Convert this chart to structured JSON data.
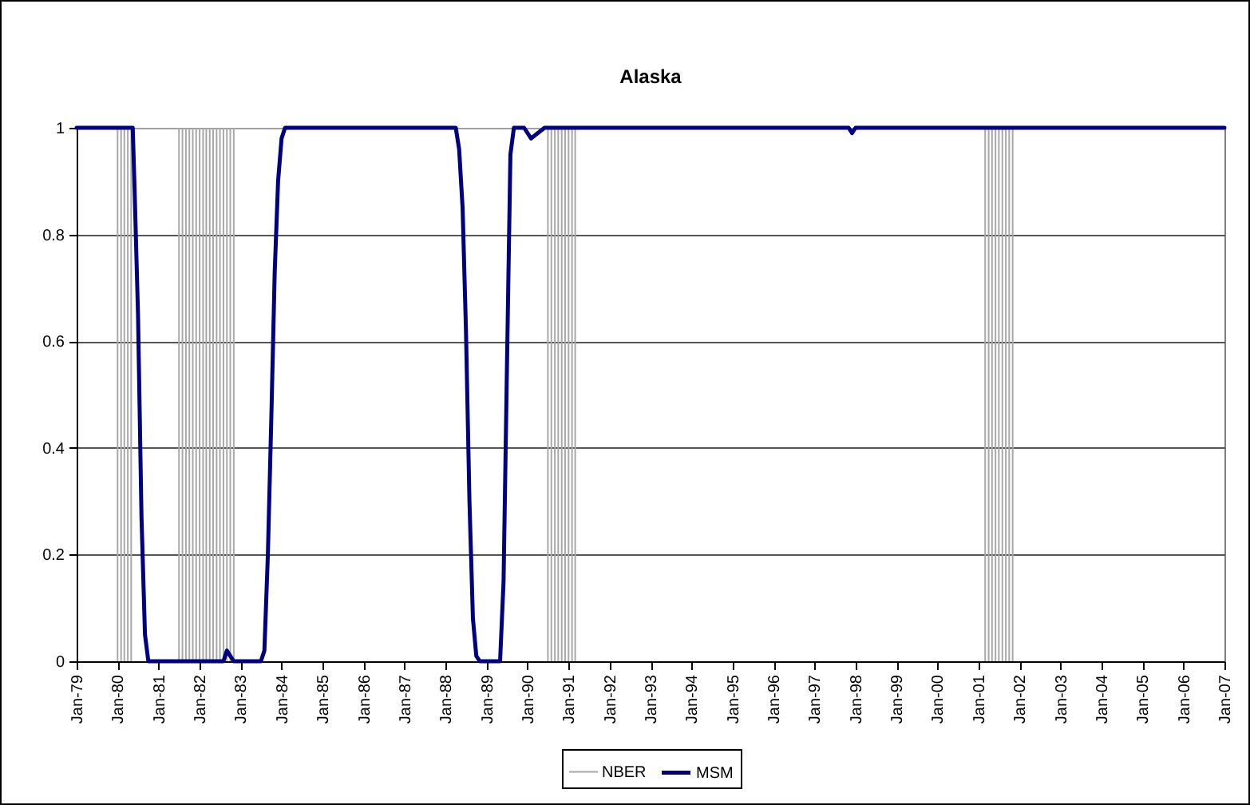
{
  "chart_data": {
    "type": "line",
    "title": "Alaska",
    "xlim": [
      "1979-01",
      "2007-01"
    ],
    "xticks": [
      {
        "value": "1979-01",
        "label": "Jan-79"
      },
      {
        "value": "1980-01",
        "label": "Jan-80"
      },
      {
        "value": "1981-01",
        "label": "Jan-81"
      },
      {
        "value": "1982-01",
        "label": "Jan-82"
      },
      {
        "value": "1983-01",
        "label": "Jan-83"
      },
      {
        "value": "1984-01",
        "label": "Jan-84"
      },
      {
        "value": "1985-01",
        "label": "Jan-85"
      },
      {
        "value": "1986-01",
        "label": "Jan-86"
      },
      {
        "value": "1987-01",
        "label": "Jan-87"
      },
      {
        "value": "1988-01",
        "label": "Jan-88"
      },
      {
        "value": "1989-01",
        "label": "Jan-89"
      },
      {
        "value": "1990-01",
        "label": "Jan-90"
      },
      {
        "value": "1991-01",
        "label": "Jan-91"
      },
      {
        "value": "1992-01",
        "label": "Jan-92"
      },
      {
        "value": "1993-01",
        "label": "Jan-93"
      },
      {
        "value": "1994-01",
        "label": "Jan-94"
      },
      {
        "value": "1995-01",
        "label": "Jan-95"
      },
      {
        "value": "1996-01",
        "label": "Jan-96"
      },
      {
        "value": "1997-01",
        "label": "Jan-97"
      },
      {
        "value": "1998-01",
        "label": "Jan-98"
      },
      {
        "value": "1999-01",
        "label": "Jan-99"
      },
      {
        "value": "2000-01",
        "label": "Jan-00"
      },
      {
        "value": "2001-01",
        "label": "Jan-01"
      },
      {
        "value": "2002-01",
        "label": "Jan-02"
      },
      {
        "value": "2003-01",
        "label": "Jan-03"
      },
      {
        "value": "2004-01",
        "label": "Jan-04"
      },
      {
        "value": "2005-01",
        "label": "Jan-05"
      },
      {
        "value": "2006-01",
        "label": "Jan-06"
      },
      {
        "value": "2007-01",
        "label": "Jan-07"
      }
    ],
    "ylim": [
      0,
      1
    ],
    "yticks": [
      0,
      0.2,
      0.4,
      0.6,
      0.8,
      1
    ],
    "grid": "y",
    "legend": "bottom",
    "series": [
      {
        "name": "NBER",
        "type": "bar",
        "color": "#a8a8a8",
        "x": [
          "1980-01",
          "1980-02",
          "1980-03",
          "1980-04",
          "1980-05",
          "1981-07",
          "1981-08",
          "1981-09",
          "1981-10",
          "1981-11",
          "1981-12",
          "1982-01",
          "1982-02",
          "1982-03",
          "1982-04",
          "1982-05",
          "1982-06",
          "1982-07",
          "1982-08",
          "1982-09",
          "1982-10",
          "1982-11",
          "1990-07",
          "1990-08",
          "1990-09",
          "1990-10",
          "1990-11",
          "1990-12",
          "1991-01",
          "1991-02",
          "1991-03",
          "2001-03",
          "2001-04",
          "2001-05",
          "2001-06",
          "2001-07",
          "2001-08",
          "2001-09",
          "2001-10",
          "2001-11"
        ],
        "values": [
          1,
          1,
          1,
          1,
          1,
          1,
          1,
          1,
          1,
          1,
          1,
          1,
          1,
          1,
          1,
          1,
          1,
          1,
          1,
          1,
          1,
          1,
          1,
          1,
          1,
          1,
          1,
          1,
          1,
          1,
          1,
          1,
          1,
          1,
          1,
          1,
          1,
          1,
          1,
          1
        ]
      },
      {
        "name": "MSM",
        "color": "#000080",
        "x": [
          "1979-01",
          "1980-05-15",
          "1980-06",
          "1980-07",
          "1980-08",
          "1980-09",
          "1980-10",
          "1982-08",
          "1982-09",
          "1982-10",
          "1982-11",
          "1983-07",
          "1983-08",
          "1983-09",
          "1983-10",
          "1983-11",
          "1983-12",
          "1984-01",
          "1984-02",
          "1988-04",
          "1988-05",
          "1988-06",
          "1988-07",
          "1988-08",
          "1988-09",
          "1988-10",
          "1988-11",
          "1989-05",
          "1989-06",
          "1989-07",
          "1989-08",
          "1989-09",
          "1989-12",
          "1990-02",
          "1990-04",
          "1990-06",
          "1997-11",
          "1997-12",
          "1998-01",
          "2007-01"
        ],
        "values": [
          1,
          1,
          0.88,
          0.65,
          0.27,
          0.05,
          0,
          0,
          0.02,
          0.01,
          0,
          0,
          0.02,
          0.2,
          0.45,
          0.73,
          0.9,
          0.98,
          1,
          1,
          0.96,
          0.85,
          0.62,
          0.3,
          0.08,
          0.01,
          0,
          0,
          0.15,
          0.55,
          0.95,
          1,
          1,
          0.98,
          0.99,
          1,
          1,
          0.99,
          1,
          1
        ]
      }
    ]
  }
}
